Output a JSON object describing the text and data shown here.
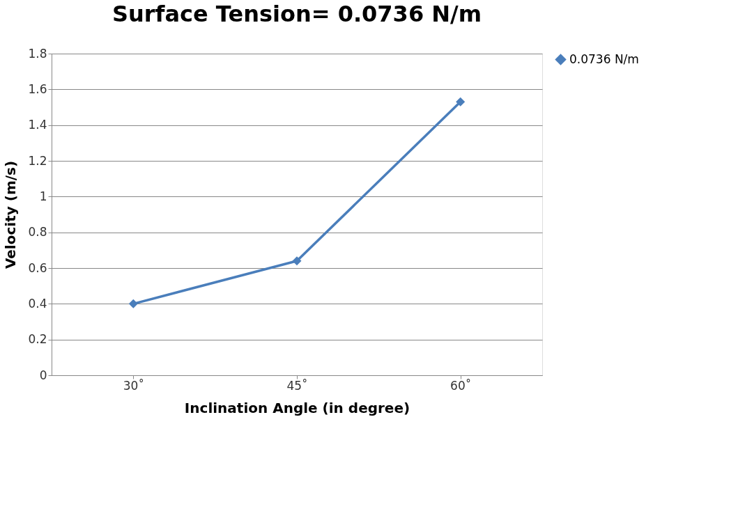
{
  "chart_data": {
    "type": "line",
    "title": "Surface Tension= 0.0736 N/m",
    "xlabel": "Inclination  Angle (in degree)",
    "ylabel": "Velocity (m/s)",
    "categories": [
      "30˚",
      "45˚",
      "60˚"
    ],
    "series": [
      {
        "name": "0.0736 N/m",
        "color": "#4a7ebb",
        "values": [
          0.4,
          0.64,
          1.53
        ]
      }
    ],
    "ylim": [
      0,
      1.8
    ],
    "yticks": [
      0,
      0.2,
      0.4,
      0.6,
      0.8,
      1,
      1.2,
      1.4,
      1.6,
      1.8
    ],
    "grid": "y",
    "legend": "right",
    "marker": "diamond",
    "line_style": "solid"
  }
}
